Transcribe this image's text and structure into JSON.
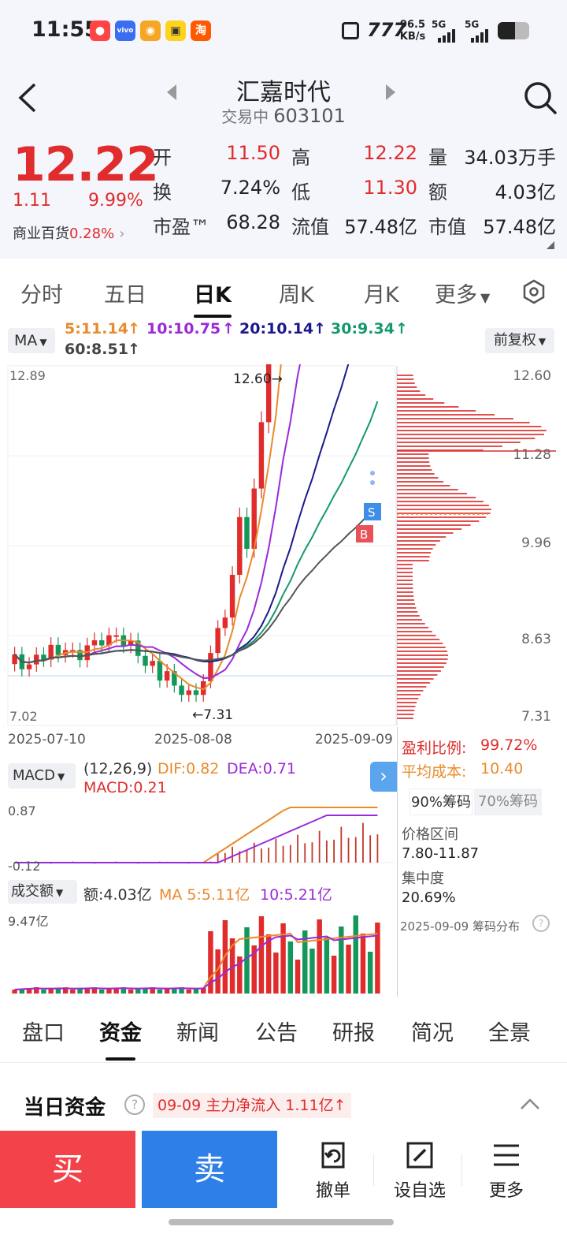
{
  "status_bar": {
    "time": "11:55",
    "speed": "96.5",
    "speed_unit": "KB/s",
    "net1": "5G",
    "net2": "5G"
  },
  "header": {
    "stock_name": "汇嘉时代",
    "trade_status": "交易中",
    "stock_code": "603101"
  },
  "quote": {
    "price": "12.22",
    "change": "1.11",
    "change_pct": "9.99%",
    "sector_name": "商业百货",
    "sector_pct": "0.28%",
    "open_label": "开",
    "open": "11.50",
    "high_label": "高",
    "high": "12.22",
    "volume_label": "量",
    "volume": "34.03万手",
    "turnover_label": "换",
    "turnover": "7.24%",
    "low_label": "低",
    "low": "11.30",
    "amount_label": "额",
    "amount": "4.03亿",
    "pe_label": "市盈™",
    "pe": "68.28",
    "float_cap_label": "流值",
    "float_cap": "57.48亿",
    "market_cap_label": "市值",
    "market_cap": "57.48亿"
  },
  "period_tabs": [
    "分时",
    "五日",
    "日K",
    "周K",
    "月K",
    "更多"
  ],
  "active_period": "日K",
  "ma_bar": {
    "button": "MA",
    "ma5": "5:11.14",
    "ma10": "10:10.75",
    "ma20": "20:10.14",
    "ma30": "30:9.34",
    "ma60": "60:8.51",
    "adjust_button": "前复权",
    "colors": {
      "ma5": "#e98b2b",
      "ma10": "#9b2ad8",
      "ma20": "#1a1a8c",
      "ma30": "#149a6a",
      "ma60": "#555555"
    }
  },
  "kline": {
    "y_top_label": "12.89",
    "y_bottom_label": "7.02",
    "high_marker": "12.60→",
    "low_marker": "←7.31",
    "dates": [
      "2025-07-10",
      "2025-08-08",
      "2025-09-09"
    ],
    "chip_axis": [
      "12.60",
      "11.28",
      "9.96",
      "8.63",
      "7.31"
    ],
    "badge_s": "S",
    "badge_b": "B"
  },
  "chip_stats": {
    "profit_ratio_label": "盈利比例:",
    "profit_ratio": "99.72%",
    "avg_cost_label": "平均成本:",
    "avg_cost": "10.40",
    "chip90": "90%筹码",
    "chip70": "70%筹码",
    "range_label": "价格区间",
    "range": "7.80-11.87",
    "concentration_label": "集中度",
    "concentration": "20.69%",
    "footer": "2025-09-09 筹码分布"
  },
  "macd": {
    "button": "MACD",
    "params": "(12,26,9)",
    "dif": "DIF:0.82",
    "dea": "DEA:0.71",
    "macd": "MACD:0.21",
    "y_top": "0.87",
    "y_bottom": "-0.12"
  },
  "volume_panel": {
    "button": "成交额",
    "amount": "额:4.03亿",
    "ma5": "MA 5:5.11亿",
    "ma10": "10:5.21亿",
    "y_top": "9.47亿"
  },
  "detail_tabs": [
    "盘口",
    "资金",
    "新闻",
    "公告",
    "研报",
    "简况",
    "全景"
  ],
  "active_detail": "资金",
  "fund": {
    "title": "当日资金",
    "help": "?",
    "info": "09-09 主力净流入 1.11亿↑"
  },
  "actions": {
    "buy": "买",
    "sell": "卖",
    "cancel": "撤单",
    "watch": "设自选",
    "more": "更多"
  }
}
